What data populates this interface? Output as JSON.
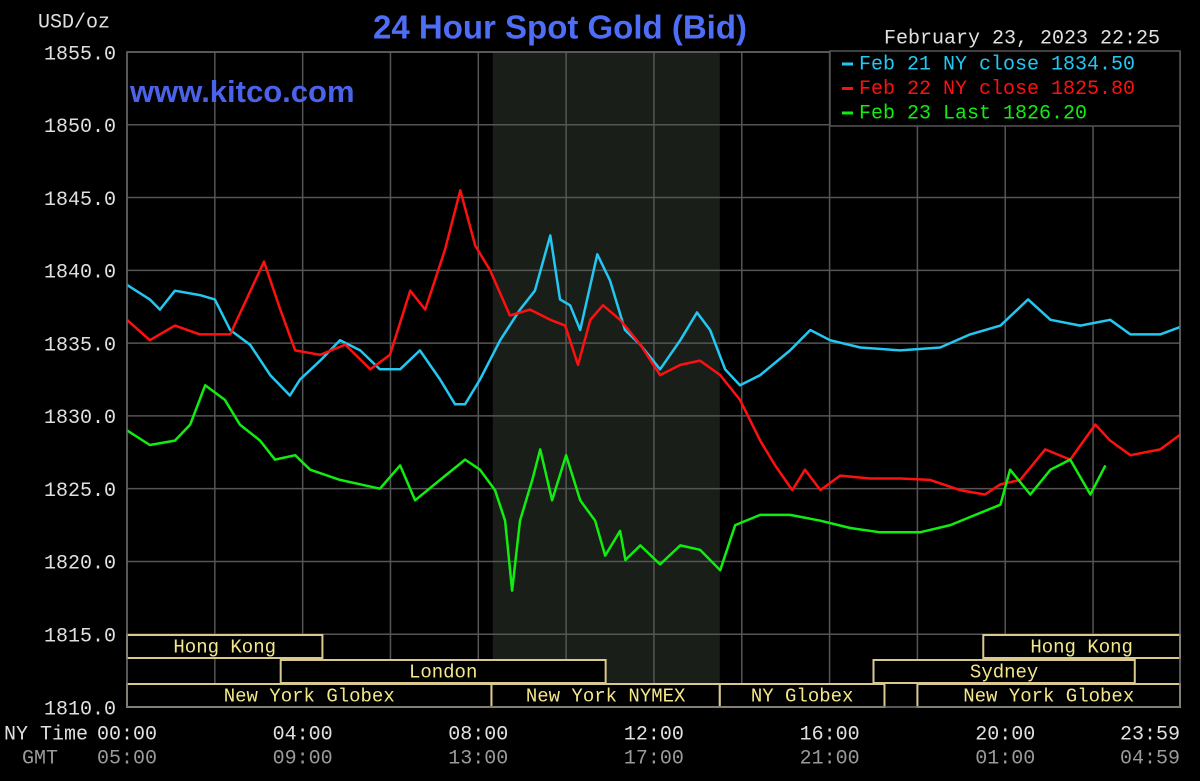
{
  "chart_data": {
    "type": "line",
    "title": "24 Hour Spot Gold (Bid)",
    "timestamp": "February 23, 2023 22:25",
    "watermark": "www.kitco.com",
    "y_label": "USD/oz",
    "x_row_labels": [
      "NY Time",
      "GMT"
    ],
    "xlim": [
      0,
      23.98
    ],
    "ylim": [
      1810,
      1855
    ],
    "xticks": [
      {
        "value": 0,
        "label": "00:00"
      },
      {
        "value": 4,
        "label": "04:00"
      },
      {
        "value": 8,
        "label": "08:00"
      },
      {
        "value": 12,
        "label": "12:00"
      },
      {
        "value": 16,
        "label": "16:00"
      },
      {
        "value": 20,
        "label": "20:00"
      },
      {
        "value": 23.98,
        "label": "23:59"
      }
    ],
    "xticks_gmt": [
      {
        "value": 0,
        "label": "05:00"
      },
      {
        "value": 4,
        "label": "09:00"
      },
      {
        "value": 8,
        "label": "13:00"
      },
      {
        "value": 12,
        "label": "17:00"
      },
      {
        "value": 16,
        "label": "21:00"
      },
      {
        "value": 20,
        "label": "01:00"
      },
      {
        "value": 23.98,
        "label": "04:59"
      }
    ],
    "xminor": [
      2,
      6,
      10,
      14,
      18,
      22
    ],
    "yticks": [
      {
        "value": 1855,
        "label": "1855.0"
      },
      {
        "value": 1850,
        "label": "1850.0"
      },
      {
        "value": 1845,
        "label": "1845.0"
      },
      {
        "value": 1840,
        "label": "1840.0"
      },
      {
        "value": 1835,
        "label": "1835.0"
      },
      {
        "value": 1830,
        "label": "1830.0"
      },
      {
        "value": 1825,
        "label": "1825.0"
      },
      {
        "value": 1820,
        "label": "1820.0"
      },
      {
        "value": 1815,
        "label": "1815.0"
      },
      {
        "value": 1810,
        "label": "1810.0"
      }
    ],
    "grid": true,
    "shade": [
      8.33,
      13.5
    ],
    "session_rows": [
      [
        {
          "label": "Hong Kong",
          "start": 0,
          "end": 4.45
        },
        {
          "label": "Hong Kong",
          "start": 19.5,
          "end": 23.98
        }
      ],
      [
        {
          "label": "London",
          "start": 3.5,
          "end": 10.9
        },
        {
          "label": "Sydney",
          "start": 17,
          "end": 22.95
        }
      ],
      [
        {
          "label": "New York Globex",
          "start": 0,
          "end": 8.3
        },
        {
          "label": "New York NYMEX",
          "start": 8.3,
          "end": 13.5
        },
        {
          "label": "NY Globex",
          "start": 13.5,
          "end": 17.25
        },
        {
          "label": "New York Globex",
          "start": 18,
          "end": 23.98
        }
      ]
    ],
    "series": [
      {
        "name": "Feb 21 NY close 1834.50",
        "color": "#22c8f2",
        "x": [
          0,
          0.52,
          0.75,
          1.09,
          1.66,
          2.0,
          2.35,
          2.8,
          3.26,
          3.71,
          3.94,
          4.4,
          4.85,
          5.31,
          5.76,
          6.22,
          6.67,
          7.13,
          7.47,
          7.7,
          8.04,
          8.5,
          8.95,
          9.29,
          9.64,
          9.86,
          10.09,
          10.32,
          10.71,
          11.0,
          11.34,
          11.69,
          12.14,
          12.6,
          12.98,
          13.28,
          13.62,
          13.96,
          14.42,
          15.1,
          15.56,
          16.01,
          16.7,
          17.61,
          18.52,
          19.2,
          19.89,
          20.52,
          21.03,
          21.71,
          22.39,
          22.85,
          23.53,
          23.98
        ],
        "values": [
          1839.0,
          1838.0,
          1837.3,
          1838.6,
          1838.3,
          1838.0,
          1835.9,
          1834.9,
          1832.8,
          1831.4,
          1832.5,
          1833.8,
          1835.2,
          1834.5,
          1833.2,
          1833.2,
          1834.5,
          1832.5,
          1830.8,
          1830.8,
          1832.5,
          1835.2,
          1837.3,
          1838.6,
          1842.4,
          1838.0,
          1837.6,
          1835.9,
          1841.1,
          1839.3,
          1835.9,
          1834.9,
          1833.2,
          1835.2,
          1837.1,
          1835.9,
          1833.2,
          1832.1,
          1832.8,
          1834.5,
          1835.9,
          1835.2,
          1834.7,
          1834.5,
          1834.7,
          1835.6,
          1836.2,
          1838.0,
          1836.6,
          1836.2,
          1836.6,
          1835.6,
          1835.6,
          1836.1
        ]
      },
      {
        "name": "Feb 22 NY close 1825.80",
        "color": "#ff1010",
        "x": [
          0,
          0.52,
          1.09,
          1.66,
          2.35,
          3.12,
          3.49,
          3.83,
          4.4,
          4.97,
          5.54,
          5.99,
          6.45,
          6.79,
          7.24,
          7.59,
          7.93,
          8.27,
          8.72,
          9.18,
          9.64,
          9.98,
          10.27,
          10.55,
          10.84,
          11.23,
          11.69,
          12.14,
          12.6,
          13.05,
          13.51,
          13.96,
          14.42,
          14.76,
          15.15,
          15.44,
          15.79,
          16.24,
          16.92,
          17.61,
          18.29,
          18.97,
          19.54,
          19.89,
          20.34,
          20.91,
          21.48,
          22.05,
          22.39,
          22.85,
          23.53,
          23.98
        ],
        "values": [
          1836.6,
          1835.2,
          1836.2,
          1835.6,
          1835.6,
          1840.6,
          1837.3,
          1834.5,
          1834.2,
          1834.9,
          1833.2,
          1834.2,
          1838.6,
          1837.3,
          1841.4,
          1845.5,
          1841.7,
          1840.0,
          1836.9,
          1837.3,
          1836.6,
          1836.2,
          1833.5,
          1836.6,
          1837.6,
          1836.6,
          1834.9,
          1832.8,
          1833.5,
          1833.8,
          1832.8,
          1831.1,
          1828.3,
          1826.6,
          1824.9,
          1826.3,
          1824.9,
          1825.9,
          1825.7,
          1825.7,
          1825.6,
          1824.9,
          1824.6,
          1825.3,
          1825.6,
          1827.7,
          1827.0,
          1829.4,
          1828.3,
          1827.3,
          1827.7,
          1828.7
        ]
      },
      {
        "name": "Feb 23 Last 1826.20",
        "color": "#10ee10",
        "x": [
          0,
          0.52,
          1.09,
          1.44,
          1.78,
          2.23,
          2.57,
          3.03,
          3.37,
          3.83,
          4.17,
          4.85,
          5.31,
          5.76,
          6.22,
          6.56,
          7.13,
          7.7,
          8.04,
          8.38,
          8.61,
          8.77,
          8.95,
          9.23,
          9.41,
          9.68,
          10.0,
          10.32,
          10.66,
          10.89,
          11.23,
          11.35,
          11.69,
          12.14,
          12.6,
          13.05,
          13.51,
          13.85,
          14.42,
          15.1,
          15.79,
          16.47,
          17.15,
          18.06,
          18.75,
          19.32,
          19.89,
          20.11,
          20.57,
          21.03,
          21.48,
          21.94,
          22.28
        ],
        "values": [
          1829.0,
          1828.0,
          1828.3,
          1829.4,
          1832.1,
          1831.1,
          1829.4,
          1828.3,
          1827.0,
          1827.3,
          1826.3,
          1825.6,
          1825.3,
          1825.0,
          1826.6,
          1824.2,
          1825.6,
          1827.0,
          1826.3,
          1824.9,
          1822.8,
          1818.0,
          1822.8,
          1825.6,
          1827.7,
          1824.2,
          1827.3,
          1824.2,
          1822.8,
          1820.4,
          1822.1,
          1820.1,
          1821.1,
          1819.8,
          1821.1,
          1820.8,
          1819.4,
          1822.5,
          1823.2,
          1823.2,
          1822.8,
          1822.3,
          1822.0,
          1822.0,
          1822.5,
          1823.2,
          1823.9,
          1826.3,
          1824.6,
          1826.3,
          1827.0,
          1824.6,
          1826.6
        ]
      }
    ]
  }
}
